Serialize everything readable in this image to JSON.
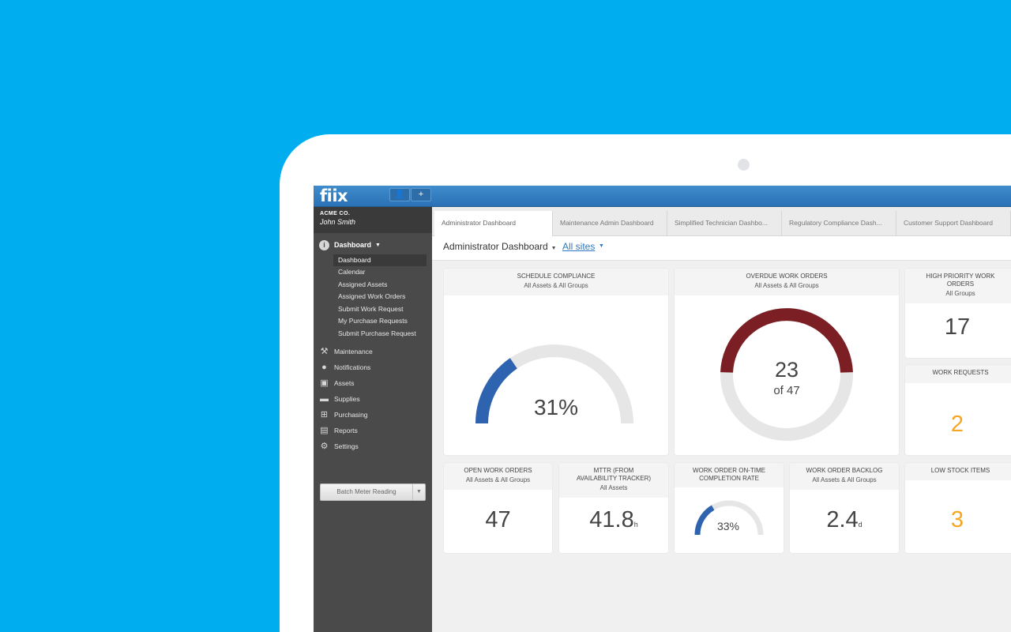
{
  "app": {
    "logo": "fiix",
    "topbar_buttons": [
      {
        "icon": "user-icon",
        "glyph": "👤"
      },
      {
        "icon": "plus-icon",
        "glyph": "+"
      }
    ]
  },
  "account": {
    "company": "ACME CO.",
    "user": "John Smith"
  },
  "sidebar": {
    "dashboard_label": "Dashboard",
    "dashboard_items": [
      "Dashboard",
      "Calendar",
      "Assigned Assets",
      "Assigned Work Orders",
      "Submit Work Request",
      "My Purchase Requests",
      "Submit Purchase Request"
    ],
    "nav_items": [
      {
        "label": "Maintenance",
        "icon": "tools-icon"
      },
      {
        "label": "Notifications",
        "icon": "chat-bubble-icon"
      },
      {
        "label": "Assets",
        "icon": "box-icon"
      },
      {
        "label": "Supplies",
        "icon": "truck-icon"
      },
      {
        "label": "Purchasing",
        "icon": "cart-icon"
      },
      {
        "label": "Reports",
        "icon": "chart-icon"
      },
      {
        "label": "Settings",
        "icon": "gear-icon"
      }
    ],
    "batch_button": "Batch Meter Reading"
  },
  "tabs": [
    "Administrator Dashboard",
    "Maintenance Admin Dashboard",
    "Simplified Technician Dashbo...",
    "Regulatory Compliance Dash...",
    "Customer Support Dashboard"
  ],
  "header": {
    "title": "Administrator Dashboard",
    "sites": "All sites"
  },
  "widgets": {
    "schedule": {
      "title": "SCHEDULE COMPLIANCE",
      "subtitle": "All Assets & All Groups",
      "value": "31%",
      "fraction": 0.31
    },
    "overdue": {
      "title": "OVERDUE WORK ORDERS",
      "subtitle": "All Assets & All Groups",
      "value": "23",
      "of": "of 47",
      "fraction": 0.489
    },
    "high_priority": {
      "title": "HIGH PRIORITY WORK ORDERS",
      "subtitle": "All Groups",
      "value": "17"
    },
    "work_requests": {
      "title": "WORK REQUESTS",
      "value": "2"
    },
    "open_wo": {
      "title": "OPEN WORK ORDERS",
      "subtitle": "All Assets & All Groups",
      "value": "47"
    },
    "mttr": {
      "title": "MTTR (FROM AVAILABILITY TRACKER)",
      "subtitle": "All Assets",
      "value": "41.8",
      "unit": "h"
    },
    "ontime": {
      "title": "WORK ORDER ON-TIME COMPLETION RATE",
      "value": "33%",
      "fraction": 0.33
    },
    "backlog": {
      "title": "WORK ORDER BACKLOG",
      "subtitle": "All Assets & All Groups",
      "value": "2.4",
      "unit": "d"
    },
    "low_stock": {
      "title": "LOW STOCK ITEMS",
      "value": "3"
    }
  },
  "colors": {
    "gauge_blue": "#2e63b0",
    "gauge_red": "#7b1f24",
    "track": "#e6e6e6",
    "orange": "#f5a623"
  }
}
